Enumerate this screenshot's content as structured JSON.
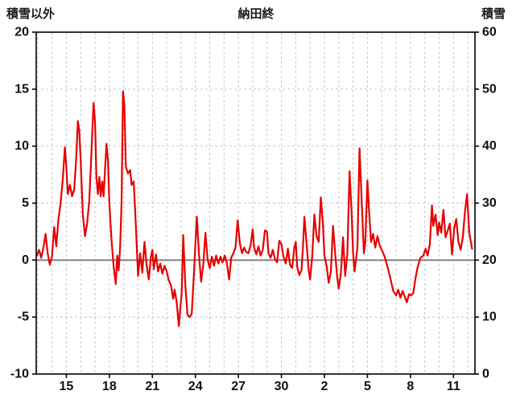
{
  "chart_data": {
    "type": "line",
    "title": "納田終",
    "grid": true,
    "legend": "none",
    "left_axis": {
      "label": "積雪以外",
      "min": -10,
      "max": 20,
      "ticks": [
        -10,
        -5,
        0,
        5,
        10,
        15,
        20
      ]
    },
    "right_axis": {
      "label": "積雪",
      "min": 0,
      "max": 60,
      "ticks": [
        0,
        10,
        20,
        30,
        40,
        50,
        60
      ]
    },
    "x_axis": {
      "min": 12.9,
      "max": 43.5,
      "minor_grid_step": 1,
      "tick_days": [
        15,
        18,
        21,
        24,
        27,
        30,
        33,
        36,
        39,
        42
      ],
      "tick_labels": [
        "15",
        "18",
        "21",
        "24",
        "27",
        "30",
        "2",
        "5",
        "8",
        "11"
      ]
    },
    "zero_line": {
      "value": 0,
      "color": "#808080"
    },
    "colors": {
      "frame": "#000000",
      "grid": "#c8c8c8",
      "text": "#111111"
    },
    "series": [
      {
        "name": "積雪以外",
        "color": "#e60000",
        "axis": "left",
        "points": [
          [
            12.95,
            0.4
          ],
          [
            13.1,
            0.9
          ],
          [
            13.25,
            0.2
          ],
          [
            13.4,
            1.1
          ],
          [
            13.55,
            2.3
          ],
          [
            13.7,
            0.6
          ],
          [
            13.85,
            -0.4
          ],
          [
            14.0,
            0.3
          ],
          [
            14.15,
            2.9
          ],
          [
            14.3,
            1.2
          ],
          [
            14.45,
            3.6
          ],
          [
            14.6,
            5.0
          ],
          [
            14.75,
            7.0
          ],
          [
            14.9,
            9.9
          ],
          [
            15.0,
            8.2
          ],
          [
            15.1,
            5.8
          ],
          [
            15.25,
            6.6
          ],
          [
            15.4,
            5.6
          ],
          [
            15.55,
            6.2
          ],
          [
            15.7,
            9.2
          ],
          [
            15.8,
            12.2
          ],
          [
            15.9,
            11.4
          ],
          [
            16.0,
            8.8
          ],
          [
            16.15,
            4.0
          ],
          [
            16.3,
            2.1
          ],
          [
            16.45,
            3.2
          ],
          [
            16.6,
            5.2
          ],
          [
            16.75,
            9.5
          ],
          [
            16.9,
            13.8
          ],
          [
            17.0,
            12.2
          ],
          [
            17.1,
            7.2
          ],
          [
            17.2,
            5.8
          ],
          [
            17.3,
            7.3
          ],
          [
            17.4,
            5.6
          ],
          [
            17.5,
            6.9
          ],
          [
            17.6,
            5.6
          ],
          [
            17.7,
            8.0
          ],
          [
            17.8,
            10.2
          ],
          [
            17.9,
            8.8
          ],
          [
            18.0,
            5.0
          ],
          [
            18.15,
            1.8
          ],
          [
            18.3,
            -0.6
          ],
          [
            18.45,
            -2.1
          ],
          [
            18.55,
            0.4
          ],
          [
            18.65,
            -0.9
          ],
          [
            18.75,
            1.1
          ],
          [
            18.85,
            5.0
          ],
          [
            18.95,
            14.8
          ],
          [
            19.05,
            13.6
          ],
          [
            19.15,
            8.2
          ],
          [
            19.3,
            7.6
          ],
          [
            19.45,
            7.9
          ],
          [
            19.55,
            6.6
          ],
          [
            19.7,
            6.9
          ],
          [
            19.85,
            3.0
          ],
          [
            20.0,
            -1.4
          ],
          [
            20.15,
            0.6
          ],
          [
            20.3,
            -1.1
          ],
          [
            20.45,
            1.6
          ],
          [
            20.6,
            -0.4
          ],
          [
            20.75,
            -1.7
          ],
          [
            20.9,
            0.3
          ],
          [
            21.0,
            0.9
          ],
          [
            21.1,
            -0.8
          ],
          [
            21.25,
            0.5
          ],
          [
            21.4,
            -1.0
          ],
          [
            21.55,
            -0.3
          ],
          [
            21.7,
            -1.2
          ],
          [
            21.85,
            -0.5
          ],
          [
            22.0,
            -1.0
          ],
          [
            22.15,
            -1.8
          ],
          [
            22.3,
            -2.2
          ],
          [
            22.45,
            -3.4
          ],
          [
            22.55,
            -2.6
          ],
          [
            22.7,
            -3.7
          ],
          [
            22.85,
            -5.8
          ],
          [
            22.95,
            -4.2
          ],
          [
            23.05,
            -2.8
          ],
          [
            23.15,
            2.2
          ],
          [
            23.3,
            -2.2
          ],
          [
            23.45,
            -4.8
          ],
          [
            23.6,
            -5.0
          ],
          [
            23.75,
            -4.7
          ],
          [
            23.9,
            -1.2
          ],
          [
            24.0,
            1.4
          ],
          [
            24.1,
            3.8
          ],
          [
            24.25,
            0.6
          ],
          [
            24.4,
            -1.9
          ],
          [
            24.55,
            -0.4
          ],
          [
            24.7,
            2.4
          ],
          [
            24.85,
            0.1
          ],
          [
            25.0,
            -0.7
          ],
          [
            25.15,
            0.3
          ],
          [
            25.3,
            -0.5
          ],
          [
            25.45,
            0.4
          ],
          [
            25.6,
            -0.3
          ],
          [
            25.75,
            0.3
          ],
          [
            25.9,
            -0.2
          ],
          [
            26.05,
            0.4
          ],
          [
            26.2,
            -0.3
          ],
          [
            26.35,
            -1.7
          ],
          [
            26.5,
            0.2
          ],
          [
            26.65,
            0.6
          ],
          [
            26.8,
            1.1
          ],
          [
            26.95,
            3.5
          ],
          [
            27.1,
            1.5
          ],
          [
            27.25,
            0.6
          ],
          [
            27.4,
            1.1
          ],
          [
            27.55,
            0.7
          ],
          [
            27.7,
            0.6
          ],
          [
            27.85,
            1.3
          ],
          [
            28.0,
            2.7
          ],
          [
            28.1,
            1.1
          ],
          [
            28.25,
            0.5
          ],
          [
            28.4,
            1.2
          ],
          [
            28.55,
            0.4
          ],
          [
            28.7,
            0.9
          ],
          [
            28.85,
            2.6
          ],
          [
            29.0,
            2.5
          ],
          [
            29.1,
            0.6
          ],
          [
            29.25,
            0.2
          ],
          [
            29.4,
            0.9
          ],
          [
            29.55,
            0.1
          ],
          [
            29.7,
            -0.2
          ],
          [
            29.85,
            1.7
          ],
          [
            30.0,
            1.4
          ],
          [
            30.15,
            0.3
          ],
          [
            30.3,
            -0.3
          ],
          [
            30.45,
            1.0
          ],
          [
            30.6,
            -0.4
          ],
          [
            30.75,
            -0.7
          ],
          [
            30.9,
            1.1
          ],
          [
            31.0,
            1.6
          ],
          [
            31.1,
            -0.6
          ],
          [
            31.25,
            -1.3
          ],
          [
            31.4,
            -0.9
          ],
          [
            31.5,
            1.1
          ],
          [
            31.6,
            3.8
          ],
          [
            31.75,
            1.6
          ],
          [
            31.9,
            -0.9
          ],
          [
            32.0,
            -1.7
          ],
          [
            32.15,
            0.4
          ],
          [
            32.3,
            4.0
          ],
          [
            32.45,
            2.1
          ],
          [
            32.6,
            1.6
          ],
          [
            32.75,
            5.5
          ],
          [
            32.9,
            3.1
          ],
          [
            33.0,
            0.4
          ],
          [
            33.15,
            -0.5
          ],
          [
            33.3,
            -2.0
          ],
          [
            33.45,
            -1.0
          ],
          [
            33.6,
            3.0
          ],
          [
            33.75,
            0.6
          ],
          [
            33.9,
            -1.6
          ],
          [
            34.0,
            -2.5
          ],
          [
            34.15,
            -1.1
          ],
          [
            34.3,
            2.0
          ],
          [
            34.45,
            -1.4
          ],
          [
            34.6,
            0.6
          ],
          [
            34.75,
            7.8
          ],
          [
            34.9,
            4.1
          ],
          [
            35.0,
            0.6
          ],
          [
            35.1,
            -1.0
          ],
          [
            35.3,
            1.1
          ],
          [
            35.45,
            9.8
          ],
          [
            35.6,
            5.2
          ],
          [
            35.75,
            0.6
          ],
          [
            35.85,
            1.6
          ],
          [
            36.0,
            7.0
          ],
          [
            36.1,
            4.6
          ],
          [
            36.25,
            1.6
          ],
          [
            36.4,
            2.3
          ],
          [
            36.55,
            1.1
          ],
          [
            36.7,
            2.1
          ],
          [
            36.85,
            1.3
          ],
          [
            37.0,
            0.9
          ],
          [
            37.2,
            0.3
          ],
          [
            37.4,
            -0.6
          ],
          [
            37.6,
            -1.6
          ],
          [
            37.8,
            -2.7
          ],
          [
            38.0,
            -3.1
          ],
          [
            38.15,
            -2.6
          ],
          [
            38.3,
            -3.3
          ],
          [
            38.45,
            -2.7
          ],
          [
            38.6,
            -3.2
          ],
          [
            38.75,
            -3.7
          ],
          [
            38.9,
            -3.0
          ],
          [
            39.05,
            -3.1
          ],
          [
            39.2,
            -2.9
          ],
          [
            39.35,
            -1.6
          ],
          [
            39.5,
            -0.6
          ],
          [
            39.7,
            0.2
          ],
          [
            39.9,
            0.4
          ],
          [
            40.05,
            1.0
          ],
          [
            40.2,
            0.4
          ],
          [
            40.35,
            1.4
          ],
          [
            40.5,
            4.8
          ],
          [
            40.6,
            3.0
          ],
          [
            40.75,
            4.0
          ],
          [
            40.9,
            2.2
          ],
          [
            41.0,
            3.3
          ],
          [
            41.15,
            2.4
          ],
          [
            41.3,
            4.4
          ],
          [
            41.45,
            2.0
          ],
          [
            41.6,
            2.6
          ],
          [
            41.75,
            3.2
          ],
          [
            41.9,
            0.5
          ],
          [
            42.05,
            2.8
          ],
          [
            42.2,
            3.6
          ],
          [
            42.35,
            1.6
          ],
          [
            42.5,
            0.9
          ],
          [
            42.65,
            2.0
          ],
          [
            42.8,
            4.2
          ],
          [
            42.95,
            5.8
          ],
          [
            43.1,
            2.4
          ],
          [
            43.3,
            1.0
          ]
        ]
      }
    ]
  }
}
